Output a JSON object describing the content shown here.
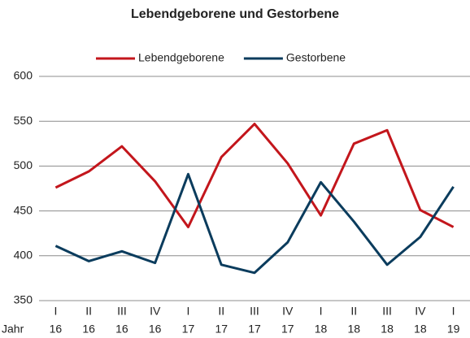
{
  "chart_data": {
    "type": "line",
    "title": "Lebendgeborene und Gestorbene",
    "categories": [
      "I",
      "II",
      "III",
      "IV",
      "I",
      "II",
      "III",
      "IV",
      "I",
      "II",
      "III",
      "IV",
      "I"
    ],
    "category_years": [
      "16",
      "16",
      "16",
      "16",
      "17",
      "17",
      "17",
      "17",
      "18",
      "18",
      "18",
      "18",
      "19"
    ],
    "xlabel": "Jahr",
    "series": [
      {
        "name": "Lebendgeborene",
        "color": "#c3161c",
        "values": [
          476,
          494,
          522,
          483,
          432,
          510,
          547,
          503,
          445,
          525,
          540,
          451,
          432
        ]
      },
      {
        "name": "Gestorbene",
        "color": "#0b3c5d",
        "values": [
          411,
          394,
          405,
          392,
          491,
          390,
          381,
          415,
          482,
          438,
          390,
          421,
          477
        ]
      }
    ],
    "ylim": [
      350,
      600
    ],
    "yticks": [
      350,
      400,
      450,
      500,
      550,
      600
    ],
    "grid": true,
    "legend": "top"
  }
}
